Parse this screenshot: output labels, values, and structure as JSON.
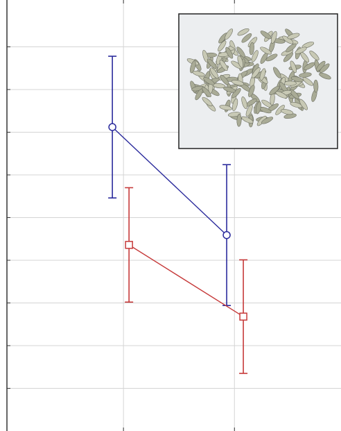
{
  "chart_data": {
    "type": "line",
    "xlim": [
      -0.05,
      2.96
    ],
    "xticks": [
      1,
      2
    ],
    "ylim": [
      0,
      10
    ],
    "yticks": [
      1,
      2,
      3,
      4,
      5,
      6,
      7,
      8,
      9
    ],
    "grid": true,
    "series": [
      {
        "color": "#2a2a9c",
        "marker": "circle",
        "x": [
          0.9,
          1.93
        ],
        "values": [
          7.12,
          4.59
        ],
        "errors": [
          1.66,
          1.65
        ]
      },
      {
        "color": "#c63a3a",
        "marker": "square",
        "x": [
          1.05,
          2.08
        ],
        "values": [
          4.36,
          2.68
        ],
        "errors": [
          1.34,
          1.33
        ]
      }
    ]
  }
}
